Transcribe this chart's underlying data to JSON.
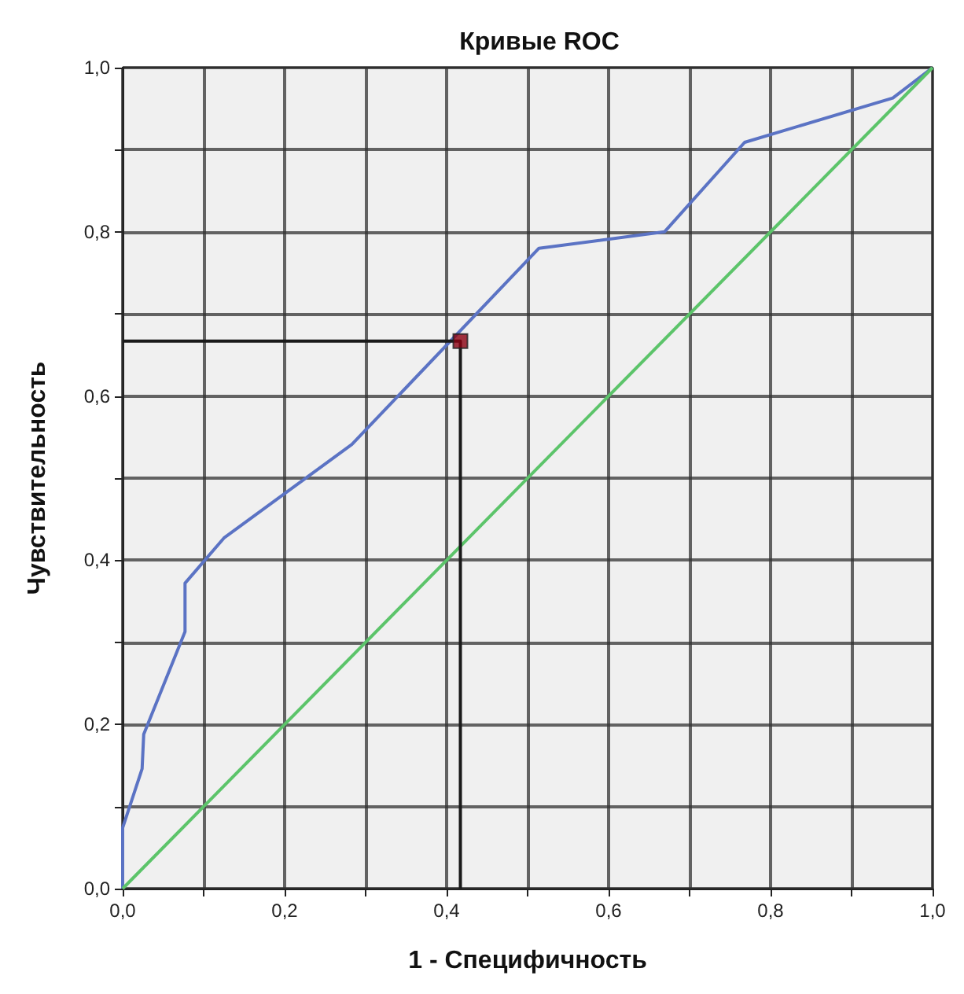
{
  "chart_data": {
    "type": "line",
    "title": "Кривые ROC",
    "xlabel": "1 - Специфичность",
    "ylabel": "Чувствительность",
    "xlim": [
      0,
      1
    ],
    "ylim": [
      0,
      1
    ],
    "xticks": [
      {
        "value": 0,
        "label": "0,0"
      },
      {
        "value": 0.1,
        "label": null
      },
      {
        "value": 0.2,
        "label": "0,2"
      },
      {
        "value": 0.3,
        "label": null
      },
      {
        "value": 0.4,
        "label": "0,4"
      },
      {
        "value": 0.5,
        "label": null
      },
      {
        "value": 0.6,
        "label": "0,6"
      },
      {
        "value": 0.7,
        "label": null
      },
      {
        "value": 0.8,
        "label": "0,8"
      },
      {
        "value": 0.9,
        "label": null
      },
      {
        "value": 1,
        "label": "1,0"
      }
    ],
    "yticks": [
      {
        "value": 0,
        "label": "0,0"
      },
      {
        "value": 0.1,
        "label": null
      },
      {
        "value": 0.2,
        "label": "0,2"
      },
      {
        "value": 0.3,
        "label": null
      },
      {
        "value": 0.4,
        "label": "0,4"
      },
      {
        "value": 0.5,
        "label": null
      },
      {
        "value": 0.6,
        "label": "0,6"
      },
      {
        "value": 0.7,
        "label": null
      },
      {
        "value": 0.8,
        "label": "0,8"
      },
      {
        "value": 0.9,
        "label": null
      },
      {
        "value": 1,
        "label": "1,0"
      }
    ],
    "grid": true,
    "marker": "none",
    "line_style": "solid",
    "series": [
      {
        "color": "#5b73c4",
        "x": [
          0,
          0,
          0.024,
          0.026,
          0.077,
          0.077,
          0.125,
          0.283,
          0.514,
          0.669,
          0.768,
          0.951,
          1
        ],
        "values": [
          0,
          0.074,
          0.146,
          0.188,
          0.313,
          0.372,
          0.427,
          0.541,
          0.78,
          0.8,
          0.909,
          0.963,
          1
        ]
      },
      {
        "color": "#5cc46a",
        "x": [
          0,
          1
        ],
        "values": [
          0,
          1
        ]
      },
      {
        "color": "#1a1a1a",
        "x": [
          0,
          0.417,
          0.417
        ],
        "values": [
          0.667,
          0.667,
          0
        ]
      },
      {
        "type": "scatter",
        "marker": "square",
        "color": "#8b0010",
        "x": [
          0.417
        ],
        "values": [
          0.667
        ]
      }
    ]
  }
}
